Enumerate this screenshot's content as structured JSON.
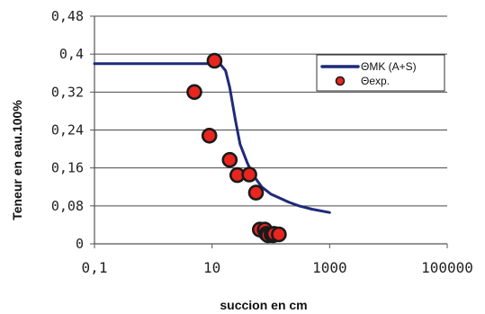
{
  "chart_data": {
    "type": "scatter",
    "x_scale": "log",
    "xlim": [
      0.1,
      100000
    ],
    "ylim": [
      0,
      0.48
    ],
    "x_ticks": [
      0.1,
      10,
      1000,
      100000
    ],
    "x_tick_labels": [
      "0,1",
      "10",
      "1000",
      "100000"
    ],
    "y_ticks": [
      0,
      0.08,
      0.16,
      0.24,
      0.32,
      0.4,
      0.48
    ],
    "y_tick_labels": [
      "0",
      "0,08",
      "0,16",
      "0,24",
      "0,32",
      "0,4",
      "0,48"
    ],
    "xlabel": "succion en cm",
    "ylabel": "Teneur en eau.100%",
    "grid": "horizontal",
    "legend_position": "top-right",
    "colors": {
      "curve": "#1f2a78",
      "marker_fill": "#e8251f",
      "marker_edge": "#1a1a1a"
    },
    "series": [
      {
        "name": "ΘMK (A+S)",
        "type": "line",
        "x": [
          0.1,
          1,
          5,
          10,
          14,
          17,
          20,
          25,
          30,
          40,
          50,
          70,
          100,
          150,
          200,
          300,
          500,
          1000
        ],
        "y": [
          0.38,
          0.38,
          0.38,
          0.38,
          0.378,
          0.365,
          0.33,
          0.26,
          0.21,
          0.17,
          0.145,
          0.12,
          0.105,
          0.095,
          0.088,
          0.08,
          0.073,
          0.066
        ]
      },
      {
        "name": "Θexp.",
        "type": "scatter",
        "x": [
          11,
          5,
          9,
          20,
          27,
          43,
          56,
          65,
          79,
          84,
          90,
          103,
          109,
          113,
          137
        ],
        "y": [
          0.386,
          0.32,
          0.228,
          0.177,
          0.145,
          0.146,
          0.108,
          0.03,
          0.03,
          0.021,
          0.018,
          0.02,
          0.018,
          0.021,
          0.02
        ]
      }
    ]
  }
}
